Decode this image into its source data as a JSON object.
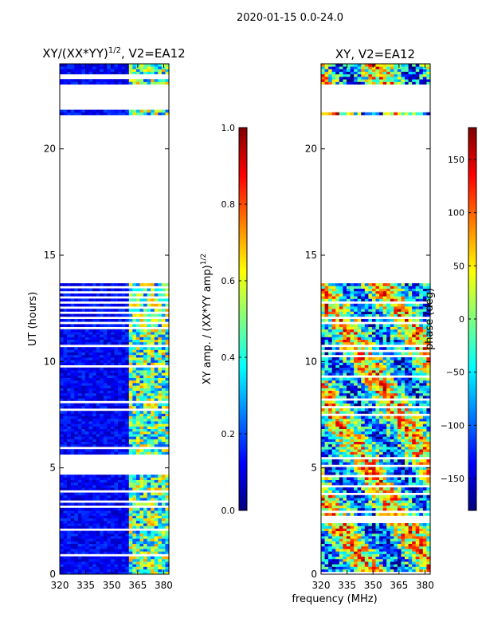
{
  "figure": {
    "suptitle": "2020-01-15 0.0-24.0",
    "shared_xlabel": "frequency (MHz)"
  },
  "colormap": {
    "name": "jet",
    "stops": [
      "#00007f",
      "#0000ff",
      "#007fff",
      "#00ffff",
      "#7fff7f",
      "#ffff00",
      "#ff7f00",
      "#ff0000",
      "#7f0000"
    ]
  },
  "chart_data": [
    {
      "type": "heatmap",
      "panel": "left",
      "title_main": "XY/(XX*YY)",
      "title_sup": "1/2",
      "title_tail": ", V2=EA12",
      "xlabel": "",
      "ylabel": "UT (hours)",
      "xlim": [
        320,
        383
      ],
      "ylim": [
        0,
        24
      ],
      "xticks": [
        320,
        335,
        350,
        365,
        380
      ],
      "yticks": [
        0,
        5,
        10,
        15,
        20
      ],
      "missing_hours": [
        [
          4.7,
          5.65
        ],
        [
          13.85,
          21.6
        ],
        [
          21.85,
          23.0
        ]
      ],
      "sparse_blanking_from_hours": 11.5,
      "x_split_mhz": 360,
      "value_range": [
        0.0,
        1.0
      ],
      "colorbar": {
        "label": "XY amp. / (XX*YY amp)",
        "label_sup": "1/2",
        "ticks": [
          "0.0",
          "0.2",
          "0.4",
          "0.6",
          "0.8",
          "1.0"
        ],
        "tick_values": [
          0.0,
          0.2,
          0.4,
          0.6,
          0.8,
          1.0
        ]
      }
    },
    {
      "type": "heatmap",
      "panel": "right",
      "title": "XY, V2=EA12",
      "xlabel": "",
      "ylabel": "",
      "xlim": [
        320,
        383
      ],
      "ylim": [
        0,
        24
      ],
      "xticks": [
        320,
        335,
        350,
        365,
        380
      ],
      "yticks": [
        0,
        5,
        10,
        15,
        20
      ],
      "missing_hours": [
        [
          3.75,
          3.85
        ],
        [
          13.85,
          21.6
        ],
        [
          21.85,
          23.0
        ]
      ],
      "value_range": [
        -180,
        180
      ],
      "colorbar": {
        "label": "phase (deg)",
        "ticks": [
          "−150",
          "−100",
          "−50",
          "0",
          "50",
          "100",
          "150"
        ],
        "tick_values": [
          -150,
          -100,
          -50,
          0,
          50,
          100,
          150
        ]
      }
    }
  ]
}
